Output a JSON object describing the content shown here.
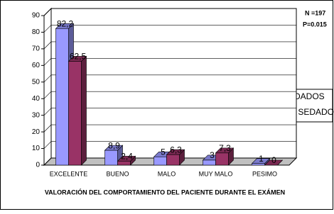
{
  "chart_data": {
    "type": "bar3d",
    "x_label": "VALORACIÓN DEL COMPORTAMIENTO DEL PACIENTE DURANTE EL EXÁMEN",
    "annotations": [
      "N =197",
      "P=0.015"
    ],
    "categories": [
      "EXCELENTE",
      "BUENO",
      "MALO",
      "MUY MALO",
      "PESIMO"
    ],
    "series": [
      {
        "name": "SEDADOS",
        "color": "#9999ff",
        "values": [
          82.2,
          8.9,
          5,
          3,
          1
        ],
        "value_labels": [
          "82,2",
          "8,9",
          "5",
          "3",
          "1"
        ]
      },
      {
        "name": "NO SEDADOS",
        "color": "#993366",
        "values": [
          62.5,
          2.4,
          6.3,
          7.3,
          0
        ],
        "value_labels": [
          "62,5",
          "2,4",
          "6,3",
          "7,3",
          "0"
        ]
      }
    ],
    "ylim": [
      0,
      90
    ],
    "yticks": [
      0,
      10,
      20,
      30,
      40,
      50,
      60,
      70,
      80,
      90
    ],
    "grid": true,
    "legend": "right"
  }
}
